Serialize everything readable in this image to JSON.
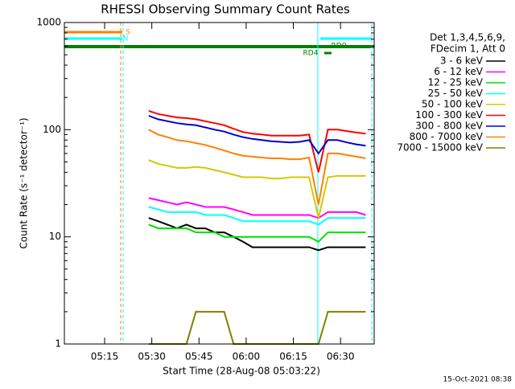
{
  "chart_data": {
    "type": "line",
    "title": "RHESSI Observing Summary Count Rates",
    "xlabel": "Start Time (28-Aug-08 05:03:22)",
    "ylabel": "Count Rate (s⁻¹ detector⁻¹)",
    "legend_header": [
      "Det 1,3,4,5,6,9,",
      "FDecim 1, Att 0"
    ],
    "footer": "15-Oct-2021 08:38",
    "annotations": [
      "S",
      "N",
      "RD4",
      "RD0"
    ],
    "log_y": true,
    "xlim": [
      2.2,
      100.7
    ],
    "xticks": [
      {
        "value": 15,
        "label": "05:15"
      },
      {
        "value": 30,
        "label": "05:30"
      },
      {
        "value": 45,
        "label": "05:45"
      },
      {
        "value": 60,
        "label": "06:00"
      },
      {
        "value": 75,
        "label": "06:15"
      },
      {
        "value": 90,
        "label": "06:30"
      }
    ],
    "ylim": [
      1,
      1000
    ],
    "yticks": [
      1,
      10,
      100,
      1000
    ],
    "x": [
      29,
      32,
      35,
      38,
      41,
      44,
      47,
      50,
      53,
      56,
      59,
      62,
      65,
      68,
      71,
      74,
      77,
      80,
      83,
      86,
      89,
      92,
      95,
      98
    ],
    "series": [
      {
        "name": "3 - 6 keV",
        "color": "#000000",
        "values": [
          15,
          14,
          13,
          12,
          13,
          12,
          12,
          11,
          11,
          10,
          9,
          8,
          8,
          8,
          8,
          8,
          8,
          8,
          7.5,
          8,
          8,
          8,
          8,
          8
        ]
      },
      {
        "name": "6 - 12 keV",
        "color": "#ff00ff",
        "values": [
          23,
          22,
          21,
          20,
          21,
          20,
          19,
          19,
          19,
          18,
          17,
          16,
          16,
          16,
          16,
          16,
          16,
          16,
          15,
          17,
          17,
          17,
          17,
          16
        ]
      },
      {
        "name": "12 - 25 keV",
        "color": "#00e000",
        "values": [
          13,
          12,
          12,
          12,
          12,
          11,
          11,
          11,
          10,
          10,
          10,
          10,
          10,
          10,
          10,
          10,
          10,
          10,
          9,
          11,
          11,
          11,
          11,
          11
        ]
      },
      {
        "name": "25 - 50 keV",
        "color": "#00ffff",
        "values": [
          19,
          18,
          17,
          17,
          17,
          17,
          16,
          16,
          16,
          15,
          14,
          14,
          14,
          14,
          14,
          14,
          14,
          14,
          13,
          15,
          15,
          15,
          15,
          15
        ]
      },
      {
        "name": "50 - 100 keV",
        "color": "#d4c800",
        "values": [
          52,
          48,
          46,
          44,
          44,
          45,
          44,
          42,
          40,
          38,
          36,
          36,
          36,
          35,
          35,
          36,
          36,
          36,
          15,
          36,
          37,
          37,
          37,
          37
        ]
      },
      {
        "name": "100 - 300 keV",
        "color": "#ff0000",
        "values": [
          150,
          140,
          135,
          130,
          128,
          125,
          120,
          115,
          110,
          102,
          95,
          92,
          90,
          88,
          88,
          88,
          88,
          90,
          40,
          100,
          100,
          97,
          94,
          92
        ]
      },
      {
        "name": "300 - 800 keV",
        "color": "#0000d0",
        "values": [
          135,
          125,
          120,
          115,
          112,
          110,
          105,
          100,
          96,
          90,
          85,
          82,
          80,
          78,
          77,
          76,
          77,
          80,
          60,
          80,
          80,
          76,
          73,
          71
        ]
      },
      {
        "name": "800 - 7000 keV",
        "color": "#ff8000",
        "values": [
          100,
          90,
          85,
          80,
          78,
          75,
          72,
          68,
          64,
          60,
          57,
          56,
          55,
          54,
          54,
          53,
          53,
          55,
          20,
          60,
          60,
          58,
          56,
          54
        ]
      },
      {
        "name": "7000 - 15000 keV",
        "color": "#808000",
        "values": [
          1,
          1,
          1,
          1,
          1,
          2,
          2,
          2,
          2,
          1,
          1,
          1,
          1,
          1,
          1,
          1,
          1,
          1,
          1,
          2,
          2,
          2,
          2,
          2
        ]
      }
    ]
  }
}
